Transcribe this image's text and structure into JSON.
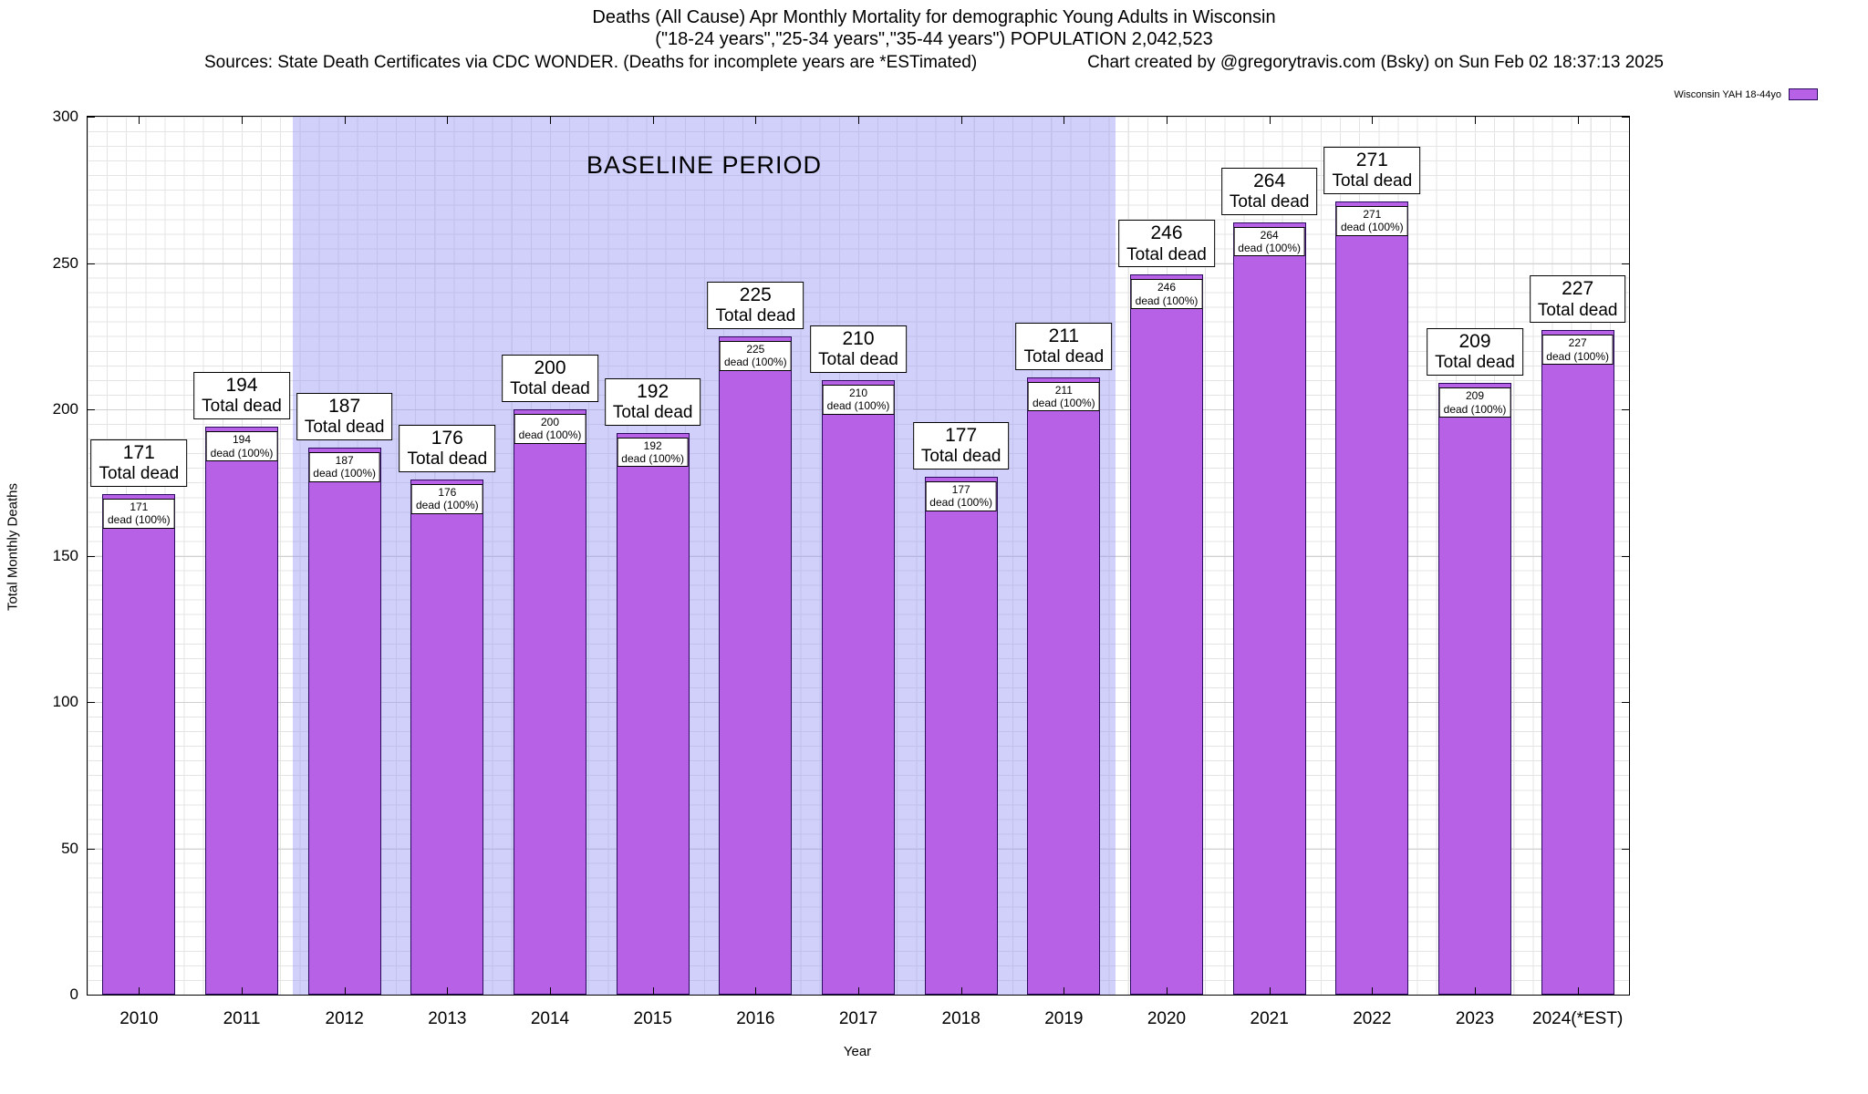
{
  "header": {
    "title_line1": "Deaths (All Cause) Apr Monthly Mortality for demographic Young Adults in Wisconsin",
    "title_line2": "(\"18-24 years\",\"25-34 years\",\"35-44 years\") POPULATION 2,042,523",
    "sources": "Sources: State Death Certificates via CDC WONDER. (Deaths for incomplete years are *ESTimated)",
    "credit": "Chart created by @gregorytravis.com (Bsky) on Sun Feb 02 18:37:13 2025"
  },
  "legend": {
    "label": "Wisconsin YAH 18-44yo",
    "swatch_color": "#b761e6"
  },
  "chart_data": {
    "type": "bar",
    "title": "Deaths (All Cause) Apr Monthly Mortality for demographic Young Adults in Wisconsin",
    "categories": [
      "2010",
      "2011",
      "2012",
      "2013",
      "2014",
      "2015",
      "2016",
      "2017",
      "2018",
      "2019",
      "2020",
      "2021",
      "2022",
      "2023",
      "2024(*EST)"
    ],
    "values": [
      171,
      194,
      187,
      176,
      200,
      192,
      225,
      210,
      177,
      211,
      246,
      264,
      271,
      209,
      227
    ],
    "bar_top_label_suffix": "Total dead",
    "bar_inner_label_suffix": "dead (100%)",
    "xlabel": "Year",
    "ylabel": "Total Monthly Deaths",
    "ylim": [
      0,
      300
    ],
    "yticks": [
      0,
      50,
      100,
      150,
      200,
      250,
      300
    ],
    "grid": true,
    "legend_position": "top-right",
    "bar_color": "#b761e6",
    "bar_border_color": "#2a0a5e",
    "baseline_region": {
      "label": "BASELINE PERIOD",
      "start_category": "2012",
      "end_category": "2019",
      "color": "#ccccf8"
    }
  }
}
